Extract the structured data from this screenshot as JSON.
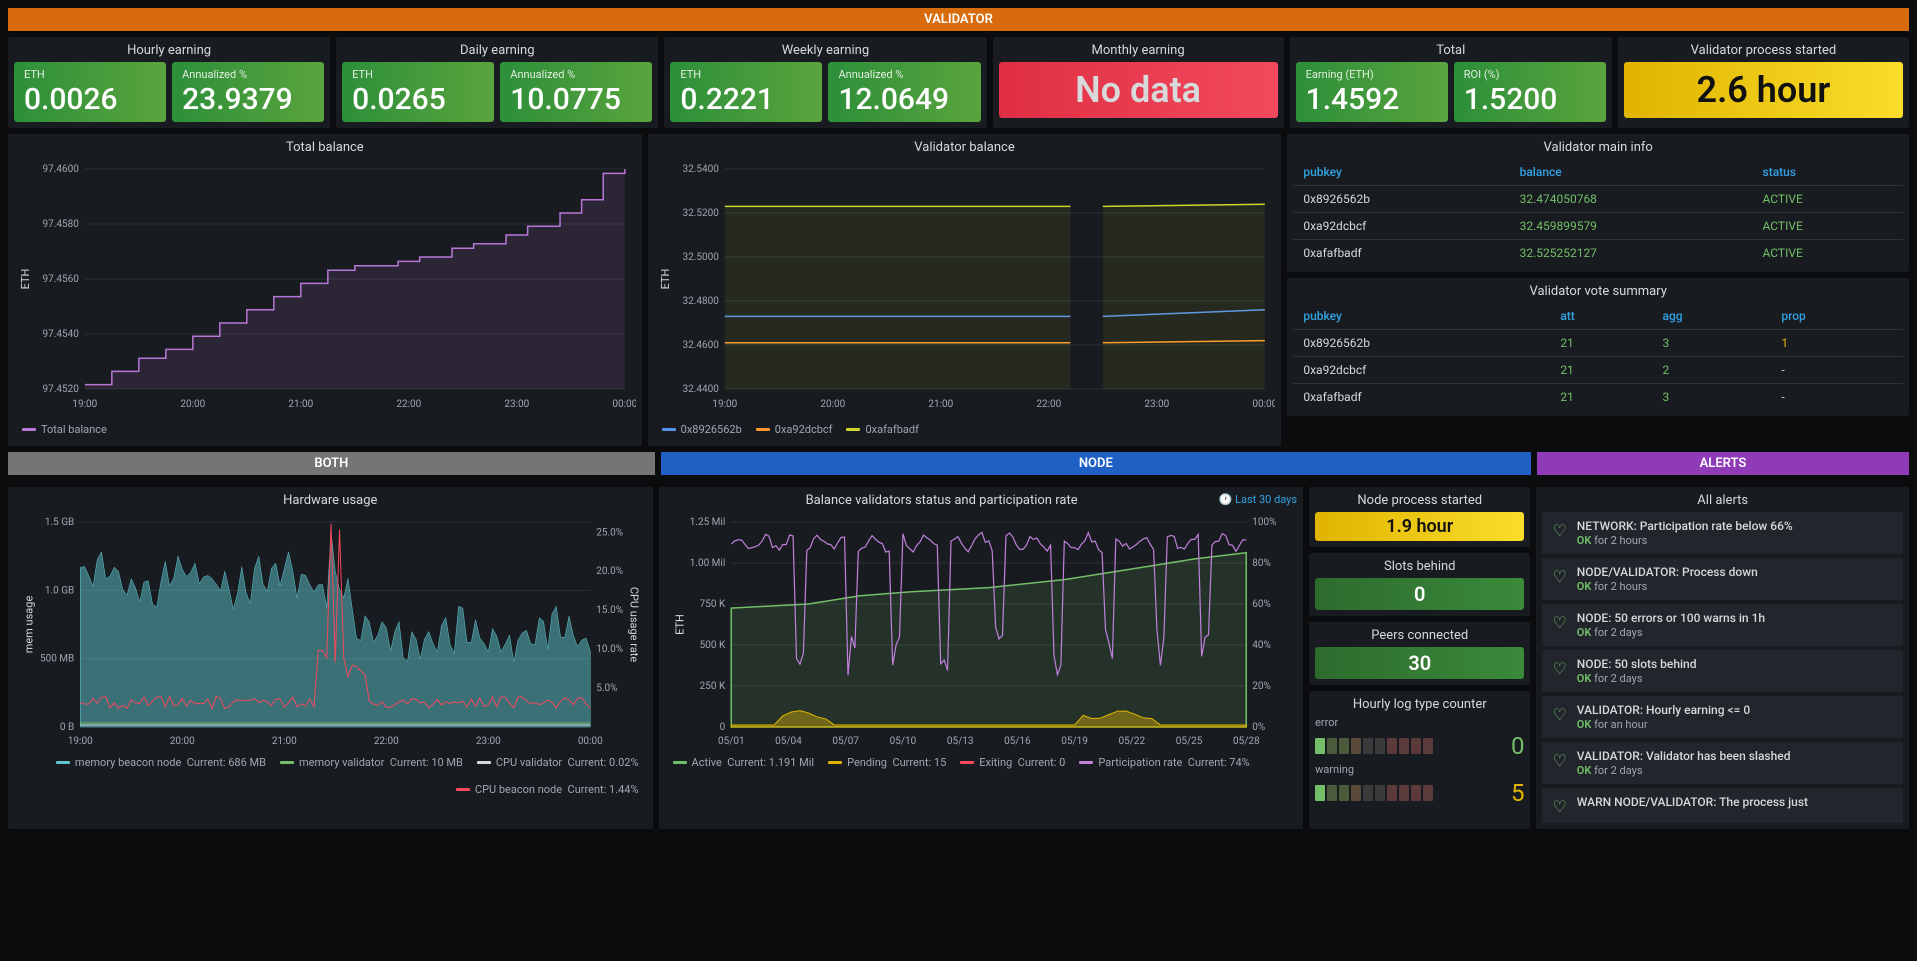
{
  "colors": {
    "orange_header": "#d86b0b",
    "grey_header": "#757575",
    "blue_header": "#1f60c4",
    "purple_header": "#8f3bb8",
    "green_box": "linear-gradient(90deg,#2d8f3a,#5aa43d)",
    "red_box": "linear-gradient(90deg,#e02f44,#f2495c)",
    "yellow_box": "linear-gradient(90deg,#e0b400,#fade2a)",
    "dark_green_box": "linear-gradient(90deg,#2d6b2d,#3a8a3a)"
  },
  "sections": {
    "validator": "VALIDATOR",
    "both": "BOTH",
    "node": "NODE",
    "alerts": "ALERTS"
  },
  "earnings": {
    "hourly": {
      "title": "Hourly earning",
      "eth_label": "ETH",
      "eth": "0.0026",
      "ann_label": "Annualized %",
      "ann": "23.9379"
    },
    "daily": {
      "title": "Daily earning",
      "eth_label": "ETH",
      "eth": "0.0265",
      "ann_label": "Annualized %",
      "ann": "10.0775"
    },
    "weekly": {
      "title": "Weekly earning",
      "eth_label": "ETH",
      "eth": "0.2221",
      "ann_label": "Annualized %",
      "ann": "12.0649"
    },
    "monthly": {
      "title": "Monthly earning",
      "nodata": "No data"
    },
    "total": {
      "title": "Total",
      "eth_label": "Earning (ETH)",
      "eth": "1.4592",
      "roi_label": "ROI (%)",
      "roi": "1.5200"
    },
    "started": {
      "title": "Validator process started",
      "value": "2.6 hour"
    }
  },
  "total_balance": {
    "title": "Total balance",
    "ylabel": "ETH",
    "yticks": [
      "97.4520",
      "97.4540",
      "97.4560",
      "97.4580",
      "97.4600"
    ],
    "xticks": [
      "19:00",
      "20:00",
      "21:00",
      "22:00",
      "23:00",
      "00:00"
    ],
    "legend": "Total balance",
    "color": "#b877d9",
    "points": [
      [
        0,
        0.02
      ],
      [
        0.05,
        0.08
      ],
      [
        0.1,
        0.14
      ],
      [
        0.15,
        0.18
      ],
      [
        0.2,
        0.24
      ],
      [
        0.25,
        0.3
      ],
      [
        0.3,
        0.36
      ],
      [
        0.35,
        0.42
      ],
      [
        0.4,
        0.48
      ],
      [
        0.45,
        0.54
      ],
      [
        0.5,
        0.56
      ],
      [
        0.55,
        0.56
      ],
      [
        0.58,
        0.58
      ],
      [
        0.62,
        0.6
      ],
      [
        0.68,
        0.64
      ],
      [
        0.72,
        0.66
      ],
      [
        0.78,
        0.7
      ],
      [
        0.82,
        0.74
      ],
      [
        0.88,
        0.8
      ],
      [
        0.92,
        0.86
      ],
      [
        0.96,
        0.98
      ],
      [
        1.0,
        1.0
      ]
    ]
  },
  "validator_balance": {
    "title": "Validator balance",
    "ylabel": "ETH",
    "yticks": [
      "32.4400",
      "32.4600",
      "32.4800",
      "32.5000",
      "32.5200",
      "32.5400"
    ],
    "xticks": [
      "19:00",
      "20:00",
      "21:00",
      "22:00",
      "23:00",
      "00:00"
    ],
    "series": [
      {
        "name": "0x8926562b",
        "color": "#5794f2",
        "y": 0.33,
        "y2": 0.36
      },
      {
        "name": "0xa92dcbcf",
        "color": "#ff9830",
        "y": 0.21,
        "y2": 0.22
      },
      {
        "name": "0xafafbadf",
        "color": "#d0d62b",
        "y": 0.83,
        "y2": 0.84
      }
    ]
  },
  "main_info": {
    "title": "Validator main info",
    "cols": [
      "pubkey",
      "balance",
      "status"
    ],
    "rows": [
      [
        "0x8926562b",
        "32.474050768",
        "ACTIVE"
      ],
      [
        "0xa92dcbcf",
        "32.459899579",
        "ACTIVE"
      ],
      [
        "0xafafbadf",
        "32.525252127",
        "ACTIVE"
      ]
    ]
  },
  "vote_summary": {
    "title": "Validator vote summary",
    "cols": [
      "pubkey",
      "att",
      "agg",
      "prop"
    ],
    "rows": [
      [
        "0x8926562b",
        "21",
        "3",
        "1"
      ],
      [
        "0xa92dcbcf",
        "21",
        "2",
        "-"
      ],
      [
        "0xafafbadf",
        "21",
        "3",
        "-"
      ]
    ]
  },
  "hardware": {
    "title": "Hardware usage",
    "yleft_label": "mem usage",
    "yright_label": "CPU usage rate",
    "yleft_ticks": [
      "0 B",
      "500 MB",
      "1.0 GB",
      "1.5 GB"
    ],
    "yright_ticks": [
      "5.0%",
      "10.0%",
      "15.0%",
      "20.0%",
      "25.0%"
    ],
    "xticks": [
      "19:00",
      "20:00",
      "21:00",
      "22:00",
      "23:00",
      "00:00"
    ],
    "legend": [
      {
        "name": "memory beacon node",
        "current": "686 MB",
        "color": "#5ec6cf"
      },
      {
        "name": "memory validator",
        "current": "10 MB",
        "color": "#73bf69"
      },
      {
        "name": "CPU validator",
        "current": "0.02%",
        "color": "#d8d9da"
      },
      {
        "name": "CPU beacon node",
        "current": "1.44%",
        "color": "#f2495c"
      }
    ]
  },
  "participation": {
    "title": "Balance validators status and participation rate",
    "time_hint": "Last 30 days",
    "yleft_label": "ETH",
    "yleft_ticks": [
      "0",
      "250 K",
      "500 K",
      "750 K",
      "1.00 Mil",
      "1.25 Mil"
    ],
    "yright_ticks": [
      "0%",
      "20%",
      "40%",
      "60%",
      "80%",
      "100%"
    ],
    "xticks": [
      "05/01",
      "05/04",
      "05/07",
      "05/10",
      "05/13",
      "05/16",
      "05/19",
      "05/22",
      "05/25",
      "05/28"
    ],
    "legend": [
      {
        "name": "Active",
        "current": "1.191 Mil",
        "color": "#73bf69"
      },
      {
        "name": "Pending",
        "current": "15",
        "color": "#e0b400"
      },
      {
        "name": "Exiting",
        "current": "0",
        "color": "#f2495c"
      },
      {
        "name": "Participation rate",
        "current": "74%",
        "color": "#c080dc"
      }
    ]
  },
  "node_stats": {
    "started": {
      "title": "Node process started",
      "value": "1.9 hour"
    },
    "slots": {
      "title": "Slots behind",
      "value": "0"
    },
    "peers": {
      "title": "Peers connected",
      "value": "30"
    }
  },
  "log_counter": {
    "title": "Hourly log type counter",
    "error": {
      "label": "error",
      "value": "0",
      "color": "#73bf69",
      "cells": [
        "#73bf69",
        "#4a5a3a",
        "#4a5a3a",
        "#5a4a3a",
        "#3a3a3a",
        "#3a3a3a",
        "#5a3a3a",
        "#5a3a3a",
        "#5a3a3a",
        "#5a3a3a"
      ]
    },
    "warning": {
      "label": "warning",
      "value": "5",
      "color": "#e0b400",
      "cells": [
        "#73bf69",
        "#4a5a3a",
        "#4a5a3a",
        "#5a4a3a",
        "#3a3a3a",
        "#3a3a3a",
        "#5a3a3a",
        "#5a3a3a",
        "#5a3a3a",
        "#5a3a3a"
      ]
    }
  },
  "alerts": {
    "title": "All alerts",
    "items": [
      {
        "title": "NETWORK: Participation rate below 66%",
        "sub": "for 2 hours"
      },
      {
        "title": "NODE/VALIDATOR: Process down",
        "sub": "for 2 hours"
      },
      {
        "title": "NODE: 50 errors or 100 warns in 1h",
        "sub": "for 2 days"
      },
      {
        "title": "NODE: 50 slots behind",
        "sub": "for 2 days"
      },
      {
        "title": "VALIDATOR: Hourly earning <= 0",
        "sub": "for an hour"
      },
      {
        "title": "VALIDATOR: Validator has been slashed",
        "sub": "for 2 days"
      },
      {
        "title": "WARN NODE/VALIDATOR: The process just",
        "sub": ""
      }
    ]
  }
}
